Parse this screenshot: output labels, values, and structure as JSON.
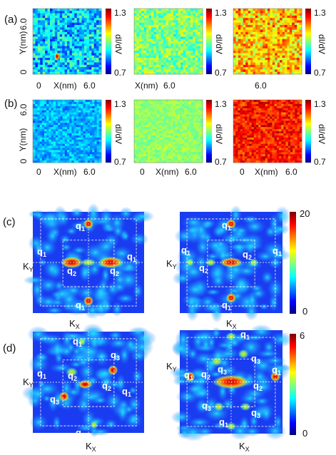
{
  "panel_labels": {
    "a": "(a)",
    "b": "(b)",
    "c": "(c)",
    "d": "(d)"
  },
  "axes": {
    "x_label": "X(nm)",
    "y_label": "Y(nm)",
    "x_start": "0",
    "x_end": "6.0",
    "y_start": "0",
    "y_end": "6.0"
  },
  "didv_colorbar": {
    "label": "dI/dV",
    "max": "1.3",
    "min": "0.7"
  },
  "fourier_colorbar_c": {
    "max": "20",
    "min": "0"
  },
  "fourier_colorbar_d": {
    "max": "6",
    "min": "0"
  },
  "k_labels": {
    "kx": "K",
    "kx_sub": "X",
    "ky": "K",
    "ky_sub": "Y"
  },
  "q_labels": {
    "q1": "q",
    "q1_sub": "1",
    "q2": "q",
    "q2_sub": "2",
    "q3": "q",
    "q3_sub": "3"
  },
  "colors": {
    "low": "#0a1fd8",
    "mid_low": "#1ab4f0",
    "mid": "#e8f04a",
    "high": "#e81a10",
    "grid": "#ffffff"
  },
  "map_levels": {
    "a": [
      0.33,
      0.5,
      0.68
    ],
    "b": [
      0.3,
      0.52,
      0.85
    ]
  }
}
